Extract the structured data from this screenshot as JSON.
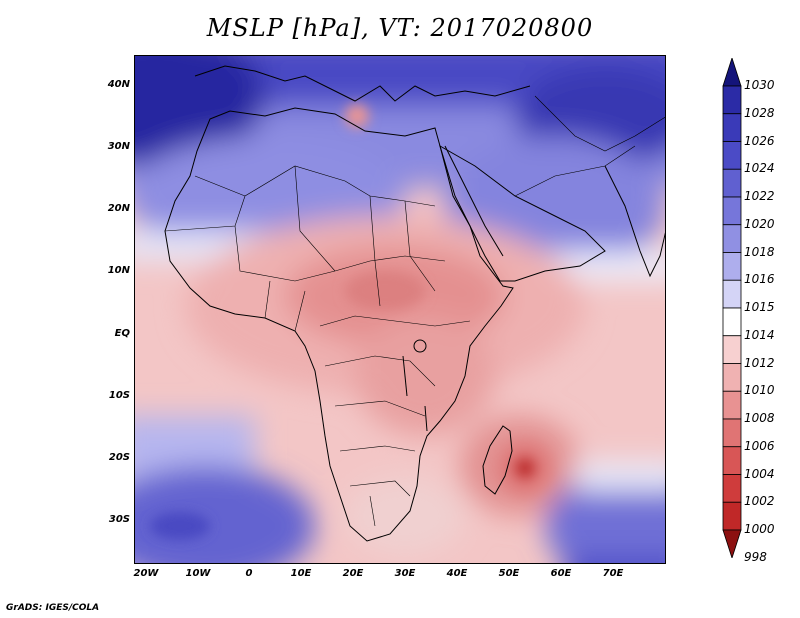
{
  "title": "MSLP [hPa], VT: 2017020800",
  "lat_labels": [
    "40N",
    "30N",
    "20N",
    "10N",
    "EQ",
    "10S",
    "20S",
    "30S"
  ],
  "lon_labels": [
    "20W",
    "10W",
    "0",
    "10E",
    "20E",
    "30E",
    "40E",
    "50E",
    "60E",
    "70E"
  ],
  "colorbar": {
    "levels": [
      "1030",
      "1028",
      "1026",
      "1024",
      "1022",
      "1020",
      "1018",
      "1016",
      "1015",
      "1014",
      "1012",
      "1010",
      "1008",
      "1006",
      "1004",
      "1002",
      "1000",
      "998"
    ],
    "colors": [
      "#1c1c8f",
      "#2b2ba6",
      "#3a3ab8",
      "#4b4bc6",
      "#6060d0",
      "#7676da",
      "#9090e3",
      "#aeaeed",
      "#d4d4f6",
      "#ffffff",
      "#f7d0d0",
      "#f0b2b2",
      "#e89292",
      "#e07474",
      "#d85656",
      "#cf3c3c",
      "#c02828",
      "#a81818"
    ],
    "top_arrow_color": "#14147a",
    "bottom_arrow_color": "#8c1010"
  },
  "credit": "GrADS: IGES/COLA"
}
